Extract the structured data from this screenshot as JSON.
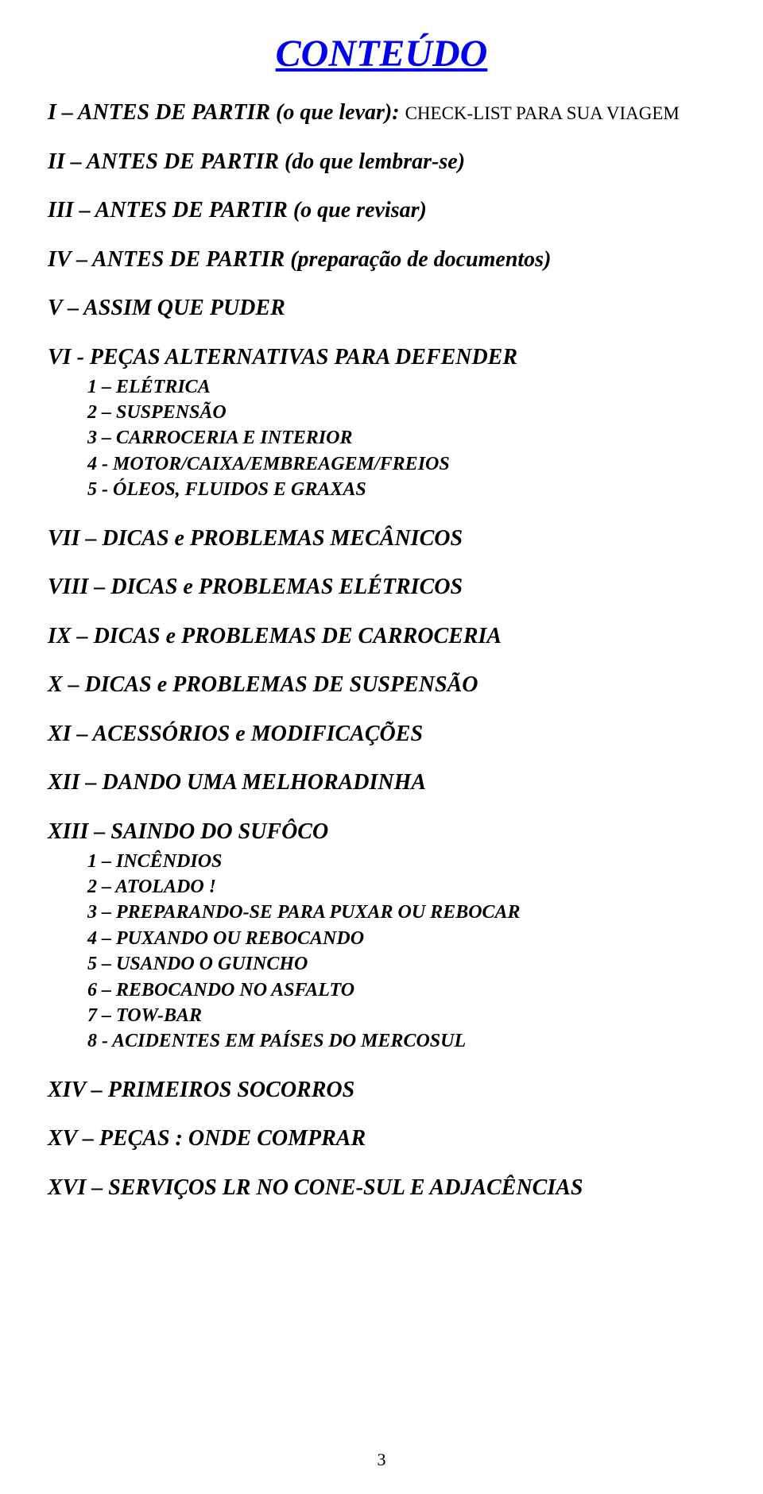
{
  "title": "CONTEÚDO",
  "title_color": "#0000ee",
  "text_color": "#000000",
  "background_color": "#ffffff",
  "font_family": "Times New Roman",
  "title_fontsize": 48,
  "section_fontsize": 28,
  "subitem_fontsize": 24,
  "sections": {
    "s1": {
      "heading": "I – ANTES DE PARTIR (o que levar): ",
      "note": "CHECK-LIST PARA SUA VIAGEM"
    },
    "s2": {
      "heading": "II – ANTES DE PARTIR (do que lembrar-se)"
    },
    "s3": {
      "heading": "III – ANTES DE PARTIR (o que revisar)"
    },
    "s4": {
      "heading": "IV – ANTES DE PARTIR (preparação de documentos)"
    },
    "s5": {
      "heading": "V – ASSIM QUE PUDER"
    },
    "s6": {
      "heading": "VI - PEÇAS ALTERNATIVAS PARA DEFENDER",
      "items": [
        "1 – ELÉTRICA",
        "2 – SUSPENSÃO",
        "3 – CARROCERIA E INTERIOR",
        "4 - MOTOR/CAIXA/EMBREAGEM/FREIOS",
        "5 - ÓLEOS, FLUIDOS E GRAXAS"
      ]
    },
    "s7": {
      "heading": "VII – DICAS e PROBLEMAS MECÂNICOS"
    },
    "s8": {
      "heading": "VIII – DICAS e PROBLEMAS ELÉTRICOS"
    },
    "s9": {
      "heading": "IX – DICAS e PROBLEMAS DE CARROCERIA"
    },
    "s10": {
      "heading": "X – DICAS e PROBLEMAS DE SUSPENSÃO"
    },
    "s11": {
      "heading": "XI – ACESSÓRIOS e MODIFICAÇÕES"
    },
    "s12": {
      "heading": "XII – DANDO UMA MELHORADINHA"
    },
    "s13": {
      "heading": "XIII – SAINDO DO SUFÔCO",
      "items": [
        "1 – INCÊNDIOS",
        "2 – ATOLADO !",
        "3 – PREPARANDO-SE PARA PUXAR OU REBOCAR",
        "4 – PUXANDO OU REBOCANDO",
        "5 – USANDO O GUINCHO",
        "6 – REBOCANDO NO ASFALTO",
        "7 – TOW-BAR",
        "8 - ACIDENTES EM PAÍSES DO MERCOSUL"
      ]
    },
    "s14": {
      "heading": "XIV – PRIMEIROS SOCORROS"
    },
    "s15": {
      "heading": "XV – PEÇAS : ONDE COMPRAR"
    },
    "s16": {
      "heading": "XVI – SERVIÇOS LR NO CONE-SUL E ADJACÊNCIAS"
    }
  },
  "page_number": "3"
}
